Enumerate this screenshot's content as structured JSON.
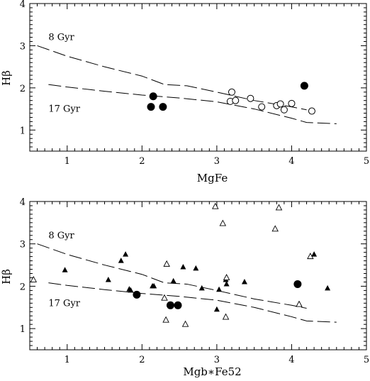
{
  "chart_data": [
    {
      "type": "scatter",
      "xlabel": "MgFe",
      "ylabel": "Hβ",
      "xlim": [
        0.5,
        5
      ],
      "ylim": [
        0.5,
        4
      ],
      "xticks": [
        "1",
        "2",
        "3",
        "4",
        "5"
      ],
      "yticks": [
        "1",
        "2",
        "3",
        "4"
      ],
      "annotations": [
        {
          "text": "8 Gyr",
          "x": 0.75,
          "y": 3.2
        },
        {
          "text": "17 Gyr",
          "x": 0.75,
          "y": 1.5
        }
      ],
      "lines": [
        {
          "name": "8 Gyr",
          "style": "dashed",
          "x": [
            0.6,
            1.0,
            1.5,
            2.0,
            2.3,
            2.6,
            3.0,
            3.5,
            4.0,
            4.2
          ],
          "y": [
            3.0,
            2.75,
            2.5,
            2.28,
            2.08,
            2.05,
            1.9,
            1.7,
            1.55,
            1.48
          ]
        },
        {
          "name": "17 Gyr",
          "style": "dashed",
          "x": [
            0.75,
            1.0,
            1.5,
            2.0,
            2.5,
            3.0,
            3.5,
            4.0,
            4.2,
            4.6
          ],
          "y": [
            2.08,
            2.02,
            1.92,
            1.83,
            1.76,
            1.67,
            1.5,
            1.28,
            1.18,
            1.15
          ]
        }
      ],
      "series": [
        {
          "marker": "filled-circle",
          "x": [
            2.15,
            2.12,
            2.28,
            4.17
          ],
          "y": [
            1.8,
            1.55,
            1.55,
            2.05
          ]
        },
        {
          "marker": "open-circle",
          "x": [
            3.2,
            3.18,
            3.25,
            3.45,
            3.6,
            3.8,
            3.85,
            3.9,
            4.0,
            4.27
          ],
          "y": [
            1.9,
            1.68,
            1.7,
            1.75,
            1.55,
            1.58,
            1.62,
            1.48,
            1.63,
            1.45
          ]
        }
      ]
    },
    {
      "type": "scatter",
      "xlabel": "Mgb∗Fe52",
      "ylabel": "Hβ",
      "xlim": [
        0.5,
        5
      ],
      "ylim": [
        0.5,
        4
      ],
      "xticks": [
        "1",
        "2",
        "3",
        "4",
        "5"
      ],
      "yticks": [
        "1",
        "2",
        "3",
        "4"
      ],
      "annotations": [
        {
          "text": "8 Gyr",
          "x": 0.75,
          "y": 3.2
        },
        {
          "text": "17 Gyr",
          "x": 0.75,
          "y": 1.6
        }
      ],
      "lines": [
        {
          "name": "8 Gyr",
          "style": "dashed",
          "x": [
            0.6,
            1.0,
            1.5,
            2.0,
            2.3,
            2.6,
            3.0,
            3.5,
            4.0,
            4.2
          ],
          "y": [
            3.0,
            2.75,
            2.5,
            2.28,
            2.08,
            2.05,
            1.9,
            1.7,
            1.55,
            1.48
          ]
        },
        {
          "name": "17 Gyr",
          "style": "dashed",
          "x": [
            0.75,
            1.0,
            1.5,
            2.0,
            2.5,
            3.0,
            3.5,
            4.0,
            4.2,
            4.6
          ],
          "y": [
            2.08,
            2.02,
            1.92,
            1.83,
            1.76,
            1.67,
            1.5,
            1.28,
            1.18,
            1.15
          ]
        }
      ],
      "series": [
        {
          "marker": "filled-circle",
          "x": [
            1.93,
            2.38,
            2.48,
            4.08
          ],
          "y": [
            1.8,
            1.55,
            1.55,
            2.05
          ]
        },
        {
          "marker": "filled-triangle",
          "x": [
            0.97,
            1.72,
            1.78,
            1.83,
            1.55,
            1.85,
            2.14,
            2.16,
            2.42,
            2.55,
            2.72,
            2.8,
            3.03,
            3.13,
            3.12,
            3.37,
            3.0,
            4.3,
            4.48
          ],
          "y": [
            2.38,
            2.6,
            2.75,
            1.93,
            2.15,
            1.9,
            2.0,
            2.0,
            2.12,
            2.45,
            2.42,
            1.95,
            1.92,
            2.05,
            2.15,
            2.1,
            1.45,
            2.75,
            1.95
          ]
        },
        {
          "marker": "open-triangle",
          "x": [
            0.55,
            2.33,
            2.3,
            2.32,
            2.58,
            2.98,
            3.08,
            3.13,
            3.12,
            3.78,
            3.83,
            4.1,
            4.25
          ],
          "y": [
            2.15,
            2.52,
            1.72,
            1.2,
            1.1,
            3.88,
            3.48,
            2.2,
            1.27,
            3.35,
            3.85,
            1.57,
            2.7
          ]
        }
      ]
    }
  ]
}
